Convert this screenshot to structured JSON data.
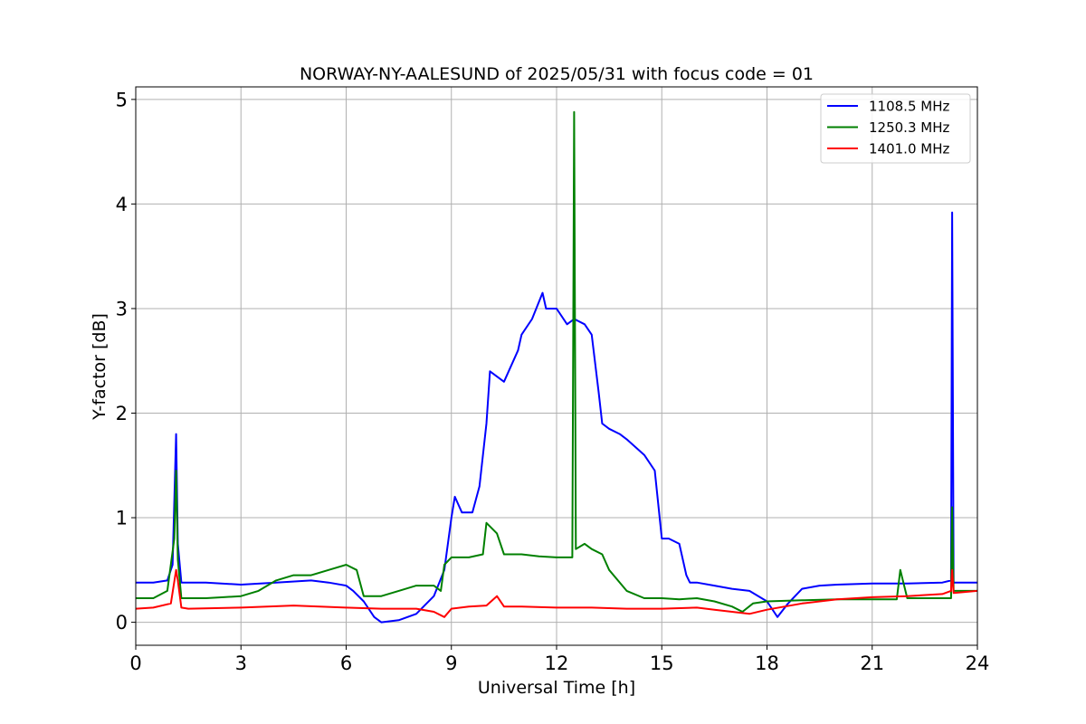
{
  "chart_data": {
    "type": "line",
    "title": "NORWAY-NY-AALESUND of 2025/05/31 with focus code = 01",
    "xlabel": "Universal Time [h]",
    "ylabel": "Y-factor [dB]",
    "xlim": [
      0,
      24
    ],
    "ylim": [
      -0.22,
      5.12
    ],
    "xticks": [
      0,
      3,
      6,
      9,
      12,
      15,
      18,
      21,
      24
    ],
    "yticks": [
      0,
      1,
      2,
      3,
      4,
      5
    ],
    "grid": true,
    "legend_position": "top-right",
    "series": [
      {
        "name": "1108.5 MHz",
        "color": "#0000ff",
        "x": [
          0,
          0.5,
          0.9,
          1.05,
          1.15,
          1.2,
          1.3,
          1.5,
          2.0,
          3.0,
          4.0,
          5.0,
          5.5,
          6.0,
          6.2,
          6.5,
          6.8,
          7.0,
          7.5,
          8.0,
          8.5,
          8.8,
          9.0,
          9.1,
          9.3,
          9.6,
          9.8,
          10.0,
          10.1,
          10.5,
          10.9,
          11.0,
          11.3,
          11.6,
          11.7,
          12.0,
          12.3,
          12.5,
          12.8,
          13.0,
          13.2,
          13.3,
          13.5,
          13.8,
          14.0,
          14.5,
          14.8,
          15.0,
          15.2,
          15.5,
          15.7,
          15.8,
          16.0,
          16.5,
          17.0,
          17.5,
          18.0,
          18.3,
          18.6,
          19.0,
          19.5,
          20.0,
          21.0,
          22.0,
          23.0,
          23.25,
          23.28,
          23.32,
          23.5,
          24.0
        ],
        "y": [
          0.38,
          0.38,
          0.4,
          0.55,
          1.8,
          0.75,
          0.38,
          0.38,
          0.38,
          0.36,
          0.38,
          0.4,
          0.38,
          0.35,
          0.3,
          0.2,
          0.05,
          0.0,
          0.02,
          0.08,
          0.25,
          0.5,
          1.0,
          1.2,
          1.05,
          1.05,
          1.3,
          1.9,
          2.4,
          2.3,
          2.6,
          2.75,
          2.9,
          3.15,
          3.0,
          3.0,
          2.85,
          2.9,
          2.85,
          2.75,
          2.2,
          1.9,
          1.85,
          1.8,
          1.75,
          1.6,
          1.45,
          0.8,
          0.8,
          0.75,
          0.45,
          0.38,
          0.38,
          0.35,
          0.32,
          0.3,
          0.2,
          0.05,
          0.18,
          0.32,
          0.35,
          0.36,
          0.37,
          0.37,
          0.38,
          0.4,
          3.92,
          0.38,
          0.38,
          0.38
        ]
      },
      {
        "name": "1250.3 MHz",
        "color": "#008000",
        "x": [
          0,
          0.5,
          0.9,
          1.1,
          1.15,
          1.2,
          1.3,
          1.5,
          2.0,
          2.5,
          3.0,
          3.5,
          4.0,
          4.5,
          5.0,
          5.5,
          6.0,
          6.3,
          6.5,
          7.0,
          7.5,
          8.0,
          8.5,
          8.7,
          8.8,
          9.0,
          9.5,
          9.9,
          10.0,
          10.3,
          10.5,
          11.0,
          11.5,
          12.0,
          12.45,
          12.5,
          12.55,
          12.8,
          13.0,
          13.3,
          13.5,
          14.0,
          14.5,
          15.0,
          15.5,
          16.0,
          16.5,
          17.0,
          17.3,
          17.6,
          18.0,
          19.0,
          20.0,
          21.0,
          21.7,
          21.8,
          22.0,
          23.0,
          23.25,
          23.28,
          23.32,
          24.0
        ],
        "y": [
          0.23,
          0.23,
          0.3,
          0.8,
          1.45,
          0.6,
          0.23,
          0.23,
          0.23,
          0.24,
          0.25,
          0.3,
          0.4,
          0.45,
          0.45,
          0.5,
          0.55,
          0.5,
          0.25,
          0.25,
          0.3,
          0.35,
          0.35,
          0.3,
          0.55,
          0.62,
          0.62,
          0.65,
          0.95,
          0.85,
          0.65,
          0.65,
          0.63,
          0.62,
          0.62,
          4.88,
          0.7,
          0.75,
          0.7,
          0.65,
          0.5,
          0.3,
          0.23,
          0.23,
          0.22,
          0.23,
          0.2,
          0.15,
          0.1,
          0.18,
          0.2,
          0.21,
          0.22,
          0.22,
          0.22,
          0.5,
          0.23,
          0.23,
          0.23,
          1.1,
          0.3,
          0.3
        ]
      },
      {
        "name": "1401.0 MHz",
        "color": "#ff0000",
        "x": [
          0,
          0.5,
          1.0,
          1.15,
          1.2,
          1.3,
          1.5,
          3.0,
          4.5,
          6.0,
          7.0,
          8.0,
          8.5,
          8.8,
          9.0,
          9.5,
          10.0,
          10.3,
          10.5,
          11.0,
          12.0,
          13.0,
          14.0,
          15.0,
          16.0,
          16.5,
          17.0,
          17.5,
          18.0,
          19.0,
          20.0,
          21.0,
          22.0,
          23.0,
          23.25,
          23.28,
          23.32,
          24.0
        ],
        "y": [
          0.13,
          0.14,
          0.18,
          0.5,
          0.4,
          0.14,
          0.13,
          0.14,
          0.16,
          0.14,
          0.13,
          0.13,
          0.1,
          0.05,
          0.13,
          0.15,
          0.16,
          0.25,
          0.15,
          0.15,
          0.14,
          0.14,
          0.13,
          0.13,
          0.14,
          0.12,
          0.1,
          0.08,
          0.12,
          0.18,
          0.22,
          0.24,
          0.25,
          0.27,
          0.3,
          0.5,
          0.28,
          0.3
        ]
      }
    ]
  }
}
